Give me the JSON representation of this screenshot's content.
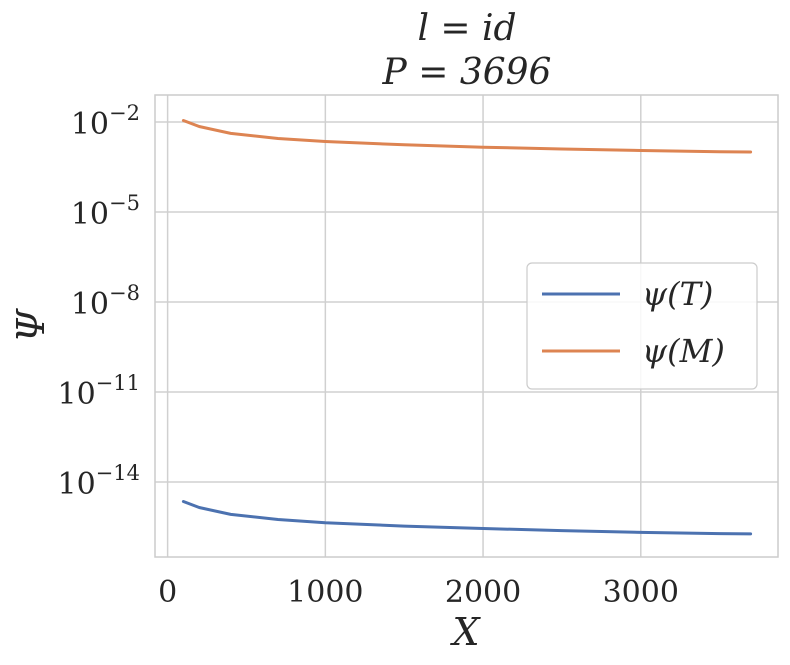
{
  "chart_data": {
    "type": "line",
    "title_line1": "l = id",
    "title_line2": "P = 3696",
    "xlabel": "X",
    "ylabel": "Ψ",
    "y_scale": "log",
    "xlim": [
      -80,
      3870
    ],
    "ylim_exp": [
      -16.5,
      -1.1
    ],
    "x_ticks": [
      0,
      1000,
      2000,
      3000
    ],
    "x_tick_labels": [
      "0",
      "1000",
      "2000",
      "3000"
    ],
    "y_ticks_exp": [
      -2,
      -5,
      -8,
      -11,
      -14
    ],
    "y_tick_bases": [
      "10",
      "10",
      "10",
      "10",
      "10"
    ],
    "y_tick_exps": [
      "−2",
      "−5",
      "−8",
      "−11",
      "−14"
    ],
    "grid": true,
    "legend_position": "center-right",
    "series": [
      {
        "name": "ψ(T)",
        "color": "#4c72b0",
        "x": [
          100,
          200,
          400,
          700,
          1000,
          1500,
          2000,
          2500,
          3000,
          3500,
          3696
        ],
        "log10_y": [
          -14.65,
          -14.85,
          -15.08,
          -15.25,
          -15.36,
          -15.47,
          -15.55,
          -15.62,
          -15.68,
          -15.72,
          -15.73
        ]
      },
      {
        "name": "ψ(M)",
        "color": "#dd8452",
        "x": [
          100,
          200,
          400,
          700,
          1000,
          1500,
          2000,
          2500,
          3000,
          3500,
          3696
        ],
        "log10_y": [
          -1.95,
          -2.15,
          -2.38,
          -2.55,
          -2.65,
          -2.76,
          -2.84,
          -2.9,
          -2.95,
          -2.99,
          -3.0
        ]
      }
    ]
  }
}
